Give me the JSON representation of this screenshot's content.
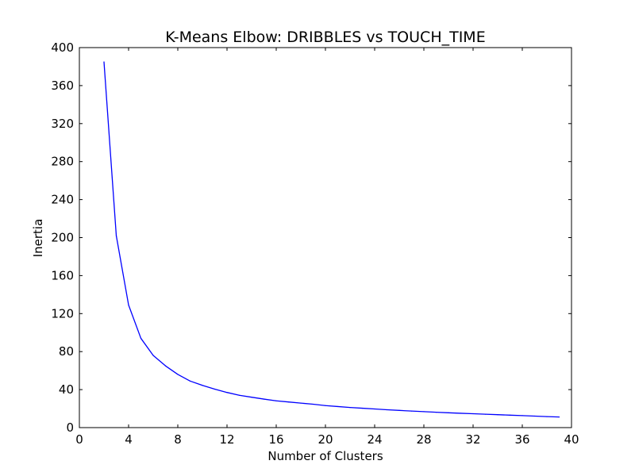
{
  "chart_data": {
    "type": "line",
    "title": "K-Means Elbow: DRIBBLES vs TOUCH_TIME",
    "xlabel": "Number of Clusters",
    "ylabel": "Inertia",
    "xlim": [
      0,
      40
    ],
    "ylim": [
      0,
      400
    ],
    "xticks": [
      0,
      4,
      8,
      12,
      16,
      20,
      24,
      28,
      32,
      36,
      40
    ],
    "yticks": [
      0,
      40,
      80,
      120,
      160,
      200,
      240,
      280,
      320,
      360,
      400
    ],
    "grid": false,
    "series": [
      {
        "color": "#0000ff",
        "x": [
          2,
          3,
          4,
          5,
          6,
          7,
          8,
          9,
          10,
          11,
          12,
          13,
          14,
          15,
          16,
          17,
          18,
          19,
          20,
          21,
          22,
          23,
          24,
          25,
          26,
          27,
          28,
          29,
          30,
          31,
          32,
          33,
          34,
          35,
          36,
          37,
          38,
          39
        ],
        "y": [
          385,
          202,
          129,
          94,
          76,
          65,
          56,
          49,
          44.5,
          40.5,
          37,
          34,
          32,
          30,
          28.2,
          27,
          25.8,
          24.6,
          23.2,
          22.2,
          21.2,
          20.4,
          19.6,
          18.8,
          18.1,
          17.4,
          16.8,
          16.2,
          15.6,
          15.1,
          14.6,
          14.1,
          13.6,
          13.1,
          12.6,
          12.1,
          11.6,
          11.2
        ]
      }
    ]
  }
}
